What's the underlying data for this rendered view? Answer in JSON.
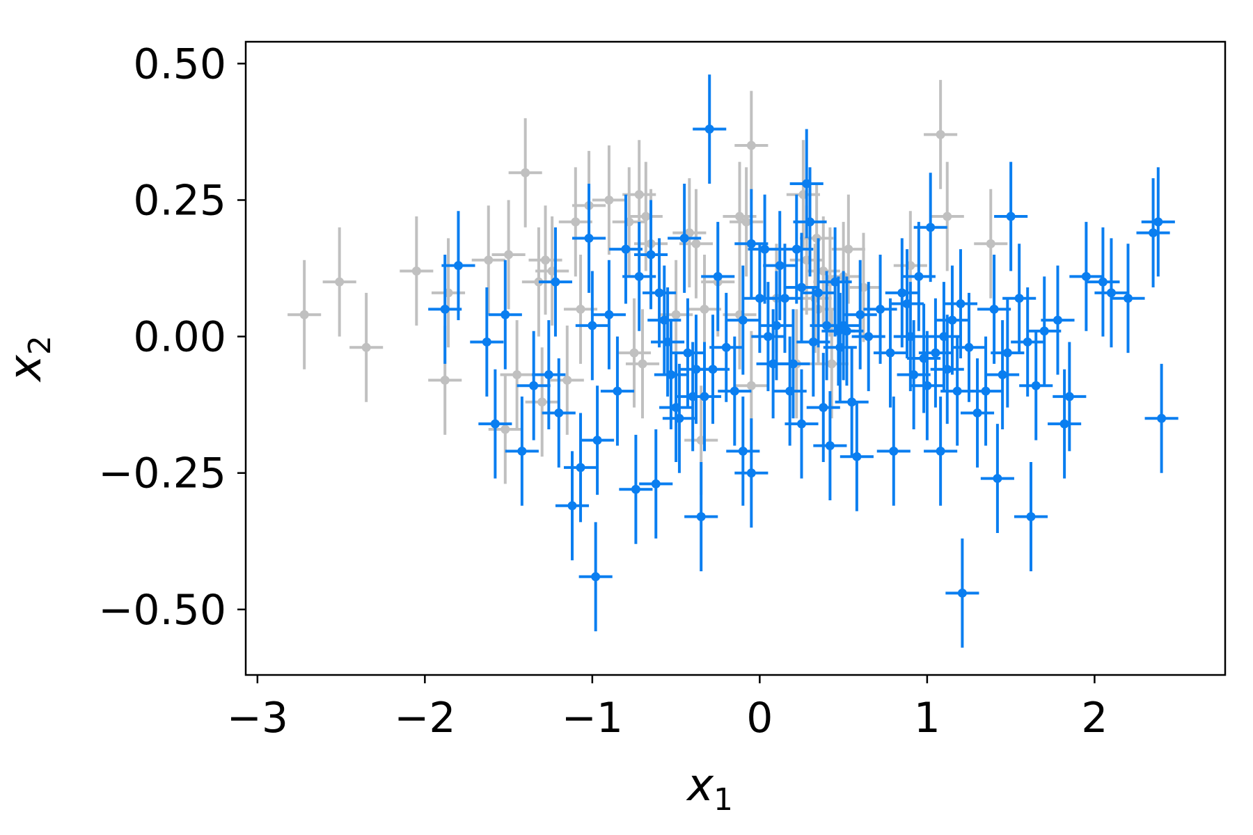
{
  "chart_data": {
    "type": "scatter",
    "title": "",
    "xlabel": "x",
    "xlabel_sub": "1",
    "ylabel": "x",
    "ylabel_sub": "2",
    "xlim": [
      -3.07,
      2.78
    ],
    "ylim": [
      -0.62,
      0.54
    ],
    "xticks": [
      -3,
      -2,
      -1,
      0,
      1,
      2
    ],
    "xtick_labels": [
      "−3",
      "−2",
      "−1",
      "0",
      "1",
      "2"
    ],
    "yticks": [
      -0.5,
      -0.25,
      0,
      0.25,
      0.5
    ],
    "ytick_labels": [
      "−0.50",
      "−0.25",
      "0.00",
      "0.25",
      "0.50"
    ],
    "error_bars": {
      "x": 0.1,
      "y": 0.1
    },
    "grid": false,
    "legend": "none",
    "series": [
      {
        "color": "#c0c0c0",
        "points": [
          [
            -2.72,
            0.04
          ],
          [
            -2.51,
            0.1
          ],
          [
            -2.35,
            -0.02
          ],
          [
            -2.05,
            0.12
          ],
          [
            -1.88,
            -0.08
          ],
          [
            -1.86,
            0.08
          ],
          [
            -1.62,
            0.14
          ],
          [
            -1.5,
            0.15
          ],
          [
            -1.52,
            -0.17
          ],
          [
            -1.45,
            -0.07
          ],
          [
            -1.4,
            0.3
          ],
          [
            -1.32,
            0.1
          ],
          [
            -1.28,
            0.14
          ],
          [
            -1.24,
            0.12
          ],
          [
            -1.3,
            -0.12
          ],
          [
            -1.1,
            0.21
          ],
          [
            -1.07,
            0.05
          ],
          [
            -1.02,
            0.24
          ],
          [
            -1.15,
            -0.08
          ],
          [
            -0.9,
            0.25
          ],
          [
            -0.78,
            0.21
          ],
          [
            -0.72,
            0.26
          ],
          [
            -0.68,
            0.22
          ],
          [
            -0.65,
            0.17
          ],
          [
            -0.7,
            -0.05
          ],
          [
            -0.75,
            -0.03
          ],
          [
            -0.5,
            0.04
          ],
          [
            -0.42,
            0.19
          ],
          [
            -0.38,
            0.17
          ],
          [
            -0.33,
            0.05
          ],
          [
            -0.25,
            0.1
          ],
          [
            -0.12,
            0.22
          ],
          [
            -0.08,
            0.21
          ],
          [
            -0.05,
            0.35
          ],
          [
            -0.12,
            0.04
          ],
          [
            -0.05,
            -0.09
          ],
          [
            0.1,
            0.07
          ],
          [
            0.22,
            -0.05
          ],
          [
            0.26,
            0.26
          ],
          [
            0.28,
            0.14
          ],
          [
            0.34,
            0.18
          ],
          [
            0.38,
            0.12
          ],
          [
            0.42,
            0.1
          ],
          [
            0.33,
            0.07
          ],
          [
            0.35,
            0.05
          ],
          [
            0.53,
            0.16
          ],
          [
            0.43,
            -0.05
          ],
          [
            0.5,
            0.11
          ],
          [
            0.62,
            0.09
          ],
          [
            0.9,
            0.13
          ],
          [
            1.08,
            0.37
          ],
          [
            1.12,
            0.22
          ],
          [
            1.38,
            0.17
          ],
          [
            -0.35,
            -0.19
          ]
        ]
      },
      {
        "color": "#0a7ef0",
        "points": [
          [
            -1.88,
            0.05
          ],
          [
            -1.8,
            0.13
          ],
          [
            -1.63,
            -0.01
          ],
          [
            -1.52,
            0.04
          ],
          [
            -1.58,
            -0.16
          ],
          [
            -1.42,
            -0.21
          ],
          [
            -1.35,
            -0.09
          ],
          [
            -1.22,
            0.1
          ],
          [
            -1.26,
            -0.07
          ],
          [
            -1.2,
            -0.14
          ],
          [
            -1.12,
            -0.31
          ],
          [
            -1.07,
            -0.24
          ],
          [
            -1.02,
            0.18
          ],
          [
            -1.0,
            0.02
          ],
          [
            -0.97,
            -0.19
          ],
          [
            -0.98,
            -0.44
          ],
          [
            -0.9,
            0.04
          ],
          [
            -0.85,
            -0.1
          ],
          [
            -0.8,
            0.16
          ],
          [
            -0.72,
            0.11
          ],
          [
            -0.74,
            -0.28
          ],
          [
            -0.65,
            0.15
          ],
          [
            -0.62,
            -0.27
          ],
          [
            -0.6,
            0.08
          ],
          [
            -0.57,
            0.03
          ],
          [
            -0.55,
            -0.01
          ],
          [
            -0.53,
            -0.07
          ],
          [
            -0.5,
            -0.13
          ],
          [
            -0.48,
            -0.15
          ],
          [
            -0.45,
            0.18
          ],
          [
            -0.43,
            -0.03
          ],
          [
            -0.4,
            -0.11
          ],
          [
            -0.38,
            -0.06
          ],
          [
            -0.35,
            -0.33
          ],
          [
            -0.33,
            -0.11
          ],
          [
            -0.3,
            0.38
          ],
          [
            -0.28,
            -0.06
          ],
          [
            -0.25,
            0.11
          ],
          [
            -0.2,
            -0.02
          ],
          [
            -0.15,
            -0.1
          ],
          [
            -0.1,
            0.03
          ],
          [
            -0.05,
            0.17
          ],
          [
            -0.1,
            -0.21
          ],
          [
            -0.05,
            -0.25
          ],
          [
            0.0,
            0.07
          ],
          [
            0.03,
            0.16
          ],
          [
            0.05,
            0.0
          ],
          [
            0.08,
            -0.05
          ],
          [
            0.1,
            0.02
          ],
          [
            0.12,
            0.13
          ],
          [
            0.15,
            0.07
          ],
          [
            0.18,
            -0.1
          ],
          [
            0.2,
            -0.05
          ],
          [
            0.22,
            0.16
          ],
          [
            0.25,
            -0.16
          ],
          [
            0.28,
            0.28
          ],
          [
            0.3,
            0.21
          ],
          [
            0.32,
            -0.01
          ],
          [
            0.35,
            0.08
          ],
          [
            0.38,
            -0.13
          ],
          [
            0.4,
            0.02
          ],
          [
            0.42,
            -0.2
          ],
          [
            0.45,
            0.1
          ],
          [
            0.47,
            0.01
          ],
          [
            0.48,
            -0.02
          ],
          [
            0.5,
            0.02
          ],
          [
            0.52,
            0.01
          ],
          [
            0.55,
            -0.12
          ],
          [
            0.58,
            -0.22
          ],
          [
            0.6,
            0.04
          ],
          [
            0.65,
            0.0
          ],
          [
            0.72,
            0.05
          ],
          [
            0.78,
            -0.03
          ],
          [
            0.8,
            -0.21
          ],
          [
            0.85,
            0.08
          ],
          [
            0.88,
            0.06
          ],
          [
            0.9,
            0.0
          ],
          [
            0.92,
            -0.07
          ],
          [
            0.95,
            0.11
          ],
          [
            0.98,
            -0.04
          ],
          [
            1.0,
            -0.09
          ],
          [
            1.02,
            0.2
          ],
          [
            1.05,
            -0.03
          ],
          [
            1.08,
            -0.21
          ],
          [
            1.1,
            0.0
          ],
          [
            1.12,
            -0.06
          ],
          [
            1.15,
            0.03
          ],
          [
            1.18,
            -0.1
          ],
          [
            1.2,
            0.06
          ],
          [
            1.21,
            -0.47
          ],
          [
            1.25,
            -0.02
          ],
          [
            1.3,
            -0.14
          ],
          [
            1.35,
            -0.1
          ],
          [
            1.4,
            0.05
          ],
          [
            1.42,
            -0.26
          ],
          [
            1.45,
            -0.07
          ],
          [
            1.48,
            -0.03
          ],
          [
            1.5,
            0.22
          ],
          [
            1.55,
            0.07
          ],
          [
            1.6,
            -0.01
          ],
          [
            1.62,
            -0.33
          ],
          [
            1.65,
            -0.09
          ],
          [
            1.7,
            0.01
          ],
          [
            1.78,
            0.03
          ],
          [
            1.82,
            -0.16
          ],
          [
            1.85,
            -0.11
          ],
          [
            1.95,
            0.11
          ],
          [
            2.05,
            0.1
          ],
          [
            2.1,
            0.08
          ],
          [
            2.2,
            0.07
          ],
          [
            2.35,
            0.19
          ],
          [
            2.38,
            0.21
          ],
          [
            2.4,
            -0.15
          ],
          [
            0.25,
            0.09
          ]
        ]
      }
    ]
  }
}
